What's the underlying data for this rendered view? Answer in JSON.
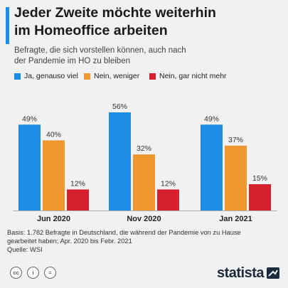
{
  "header": {
    "title_line1": "Jeder Zweite möchte weiterhin",
    "title_line2": "im Homeoffice arbeiten",
    "subtitle_line1": "Befragte, die sich vorstellen können, auch nach",
    "subtitle_line2": "der Pandemie im HO zu bleiben",
    "accent_color": "#1c8ce6"
  },
  "chart_data": {
    "type": "bar",
    "categories": [
      "Jun 2020",
      "Nov 2020",
      "Jan 2021"
    ],
    "series": [
      {
        "name": "Ja, genauso viel",
        "color": "#1c8ce6",
        "values": [
          49,
          56,
          49
        ]
      },
      {
        "name": "Nein, weniger",
        "color": "#f0962e",
        "values": [
          40,
          32,
          37
        ]
      },
      {
        "name": "Nein, gar nicht mehr",
        "color": "#d7202e",
        "values": [
          12,
          12,
          15
        ]
      }
    ],
    "value_suffix": "%",
    "ylim": [
      0,
      56
    ],
    "legend_position": "top",
    "grid": false
  },
  "notes": {
    "basis_line1": "Basis: 1.782 Befragte in Deutschland, die während der Pandemie von zu Hause",
    "basis_line2": "gearbeitet haben; Apr. 2020 bis Febr. 2021",
    "source": "Quelle: WSI"
  },
  "footer": {
    "icons": [
      {
        "icon": "cc-icon",
        "glyph": "cc"
      },
      {
        "icon": "attribution-icon",
        "glyph": "i"
      },
      {
        "icon": "no-derivatives-icon",
        "glyph": "="
      }
    ],
    "logo_text": "statista"
  }
}
